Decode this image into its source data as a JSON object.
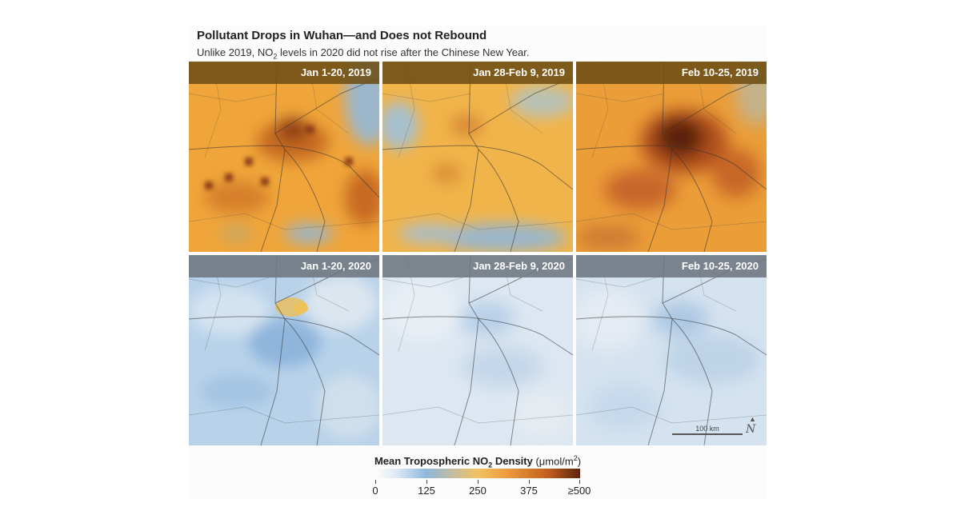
{
  "title": "Pollutant Drops in Wuhan—and Does not Rebound",
  "subtitle": {
    "before": "Unlike 2019, NO",
    "sub": "2",
    "after": " levels in 2020 did not rise after the Chinese New Year."
  },
  "panels": [
    {
      "label": "Jan 1-20, 2019",
      "year": "2019",
      "no2_level": "high"
    },
    {
      "label": "Jan 28-Feb 9, 2019",
      "year": "2019",
      "no2_level": "medium"
    },
    {
      "label": "Feb 10-25, 2019",
      "year": "2019",
      "no2_level": "very-high"
    },
    {
      "label": "Jan 1-20, 2020",
      "year": "2020",
      "no2_level": "low-medium"
    },
    {
      "label": "Jan 28-Feb 9, 2020",
      "year": "2020",
      "no2_level": "low"
    },
    {
      "label": "Feb 10-25, 2020",
      "year": "2020",
      "no2_level": "low"
    }
  ],
  "scale_bar": {
    "label": "100 km"
  },
  "north_arrow": {
    "symbol": "N"
  },
  "legend": {
    "title_bold_before": "Mean Tropospheric NO",
    "title_bold_sub": "2",
    "title_bold_after": " Density",
    "units_before": " (μmol/m",
    "units_sup": "2",
    "units_after": ")",
    "ticks": [
      "0",
      "125",
      "250",
      "375",
      "≥500"
    ]
  },
  "colors": {
    "very_low": "#ffffff",
    "low": "#8fb7dc",
    "mid": "#f4c263",
    "high": "#c25a1f",
    "max": "#5a2410"
  }
}
